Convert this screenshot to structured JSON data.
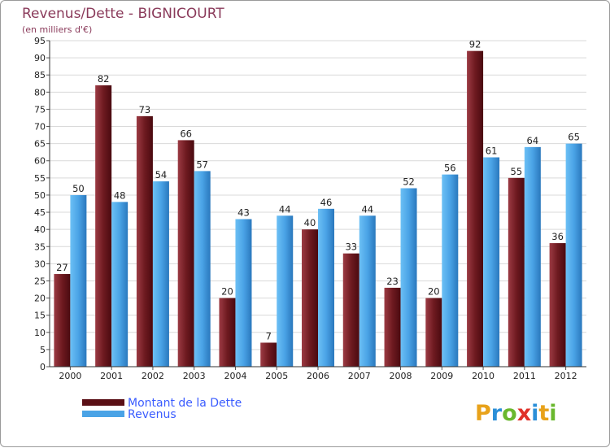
{
  "chart_data": {
    "type": "bar",
    "title": "Revenus/Dette - BIGNICOURT",
    "subtitle": "(en milliers d'€)",
    "categories": [
      "2000",
      "2001",
      "2002",
      "2003",
      "2004",
      "2005",
      "2006",
      "2007",
      "2008",
      "2009",
      "2010",
      "2011",
      "2012"
    ],
    "series": [
      {
        "name": "Montant de la Dette",
        "color": "#7a1e24",
        "values": [
          27,
          82,
          73,
          66,
          20,
          7,
          40,
          33,
          23,
          20,
          92,
          55,
          36
        ]
      },
      {
        "name": "Revenus",
        "color": "#4aa3e6",
        "values": [
          50,
          48,
          54,
          57,
          43,
          44,
          46,
          44,
          52,
          56,
          61,
          64,
          65
        ]
      }
    ],
    "ylim": [
      0,
      95
    ],
    "ytick_step": 5,
    "grid": true,
    "xlabel": "",
    "ylabel": "",
    "legend": "bottom-left"
  },
  "logo": {
    "text": "Proxiti",
    "letters": [
      "P",
      "r",
      "o",
      "x",
      "i",
      "t",
      "i"
    ]
  }
}
